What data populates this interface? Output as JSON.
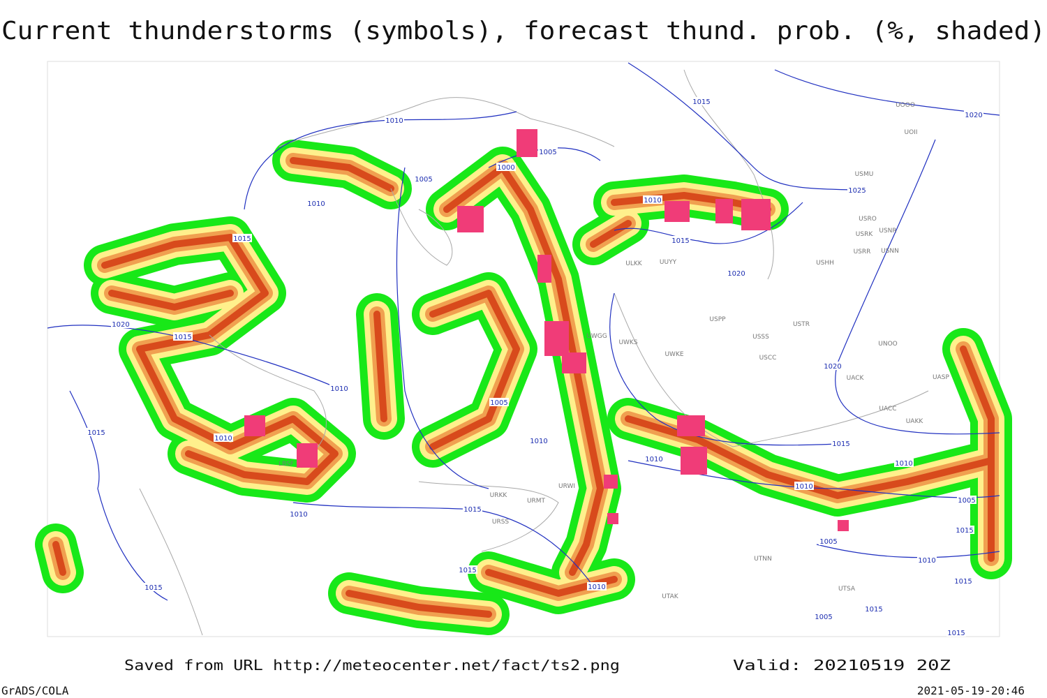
{
  "header": {
    "title": "Current thunderstorms (symbols), forecast thund. prob. (%, shaded)"
  },
  "map": {
    "isobar_labels": [
      1010,
      1005,
      1000,
      1005,
      1015,
      1020,
      1025,
      1010,
      1015,
      1020,
      1010,
      1015,
      1020,
      1015,
      1010,
      1005,
      1015,
      1010,
      1010,
      1010,
      1015,
      1010,
      1010,
      1005,
      1015,
      1010,
      1005,
      1015,
      1010,
      1015,
      1010,
      1015,
      1015,
      1015,
      1005,
      1015,
      1020
    ],
    "stations": [
      "UUYY",
      "ULKK",
      "USSS",
      "USTR",
      "USCC",
      "USPP",
      "UWKE",
      "UWGG",
      "UWKS",
      "USRR",
      "USHH",
      "USMU",
      "UOOO",
      "UOII",
      "USRO",
      "USRK",
      "USNR",
      "USNN",
      "UACC",
      "UAKK",
      "UASP",
      "UACK",
      "UNOO",
      "URWI",
      "URMT",
      "URSS",
      "URKK",
      "UTAK",
      "UTSA",
      "UTNN",
      "LBSF"
    ]
  },
  "footer": {
    "source": "Saved from URL http://meteocenter.net/fact/ts2.png",
    "valid": "Valid: 20210519 20Z",
    "software": "GrADS/COLA",
    "timestamp": "2021-05-19-20:46"
  }
}
